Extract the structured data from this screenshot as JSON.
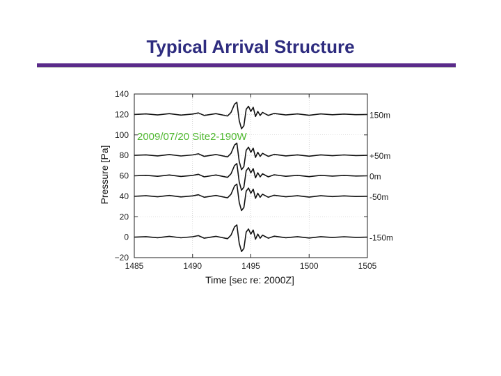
{
  "slide": {
    "title": "Typical Arrival Structure"
  },
  "chart_data": {
    "type": "line",
    "annotation": "2009/07/20  Site2-190W",
    "xlabel": "Time [sec re: 2000Z]",
    "ylabel": "Pressure [Pa]",
    "xlim": [
      1485,
      1505
    ],
    "ylim": [
      -20,
      140
    ],
    "xticks": [
      1485,
      1490,
      1495,
      1500,
      1505
    ],
    "yticks": [
      140,
      120,
      100,
      80,
      60,
      40,
      20,
      0,
      -20
    ],
    "grid": true,
    "colors": {
      "trace": "#111111",
      "annotation": "#4fb82f",
      "grid": "#bbbbbb"
    },
    "series": [
      {
        "name": "150m",
        "offset": 120
      },
      {
        "name": "+50m",
        "offset": 80
      },
      {
        "name": "0m",
        "offset": 60
      },
      {
        "name": "-50m",
        "offset": 40
      },
      {
        "name": "-150m",
        "offset": 0
      }
    ],
    "waveform": {
      "t": [
        1485,
        1486,
        1487,
        1488,
        1489,
        1490,
        1490.5,
        1491,
        1492,
        1493,
        1493.3,
        1493.6,
        1493.8,
        1494,
        1494.2,
        1494.4,
        1494.6,
        1494.8,
        1495,
        1495.2,
        1495.4,
        1495.6,
        1495.8,
        1496,
        1496.5,
        1497,
        1498,
        1499,
        1500,
        1501,
        1502,
        1503,
        1504,
        1505
      ],
      "dp": [
        0,
        0.5,
        -0.5,
        0.8,
        -0.6,
        0.4,
        1.5,
        -1,
        0.8,
        -1.5,
        2,
        10,
        12,
        -6,
        -14,
        -11,
        5,
        8,
        3,
        7,
        -2,
        3,
        -1,
        2,
        -1,
        1,
        -0.5,
        0.5,
        -0.8,
        0.5,
        -0.3,
        0.4,
        -0.2,
        0
      ]
    }
  }
}
